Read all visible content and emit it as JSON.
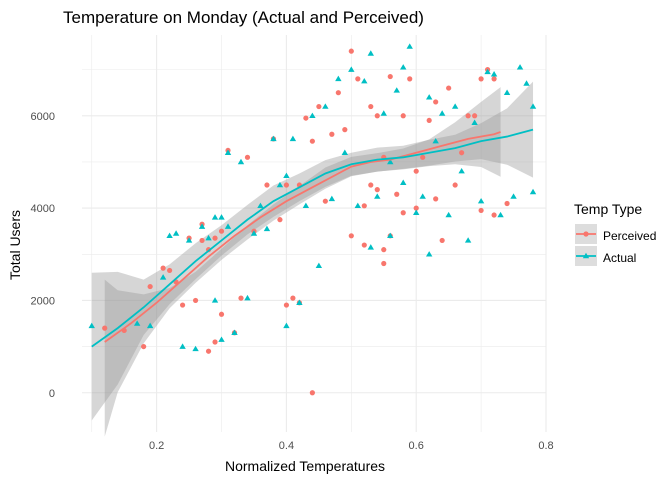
{
  "chart_data": {
    "type": "scatter",
    "title": "Temperature on Monday (Actual and Perceived)",
    "xlabel": "Normalized Temperatures",
    "ylabel": "Total Users",
    "xlim": [
      0.085,
      0.8
    ],
    "ylim": [
      -850,
      7750
    ],
    "x_ticks": [
      0.2,
      0.4,
      0.6,
      0.8
    ],
    "x_tick_labels": [
      "0.2",
      "0.4",
      "0.6",
      "0.8"
    ],
    "y_ticks": [
      0,
      2000,
      4000,
      6000
    ],
    "y_tick_labels": [
      "0",
      "2000",
      "4000",
      "6000"
    ],
    "grid": true,
    "legend": {
      "title": "Temp Type",
      "position": "right"
    },
    "series": [
      {
        "name": "Perceived",
        "color": "#F8766D",
        "marker": "circle",
        "points": [
          [
            0.12,
            1400
          ],
          [
            0.15,
            1350
          ],
          [
            0.18,
            1000
          ],
          [
            0.19,
            2300
          ],
          [
            0.21,
            2700
          ],
          [
            0.22,
            2650
          ],
          [
            0.23,
            2400
          ],
          [
            0.24,
            1900
          ],
          [
            0.25,
            3350
          ],
          [
            0.26,
            2000
          ],
          [
            0.27,
            3650
          ],
          [
            0.27,
            3300
          ],
          [
            0.28,
            900
          ],
          [
            0.28,
            3100
          ],
          [
            0.29,
            3350
          ],
          [
            0.29,
            1100
          ],
          [
            0.3,
            1700
          ],
          [
            0.3,
            3500
          ],
          [
            0.31,
            5250
          ],
          [
            0.32,
            1300
          ],
          [
            0.33,
            2050
          ],
          [
            0.34,
            5100
          ],
          [
            0.35,
            3500
          ],
          [
            0.37,
            4500
          ],
          [
            0.38,
            5500
          ],
          [
            0.39,
            3750
          ],
          [
            0.4,
            4500
          ],
          [
            0.4,
            1900
          ],
          [
            0.41,
            2050
          ],
          [
            0.42,
            1950
          ],
          [
            0.42,
            4500
          ],
          [
            0.43,
            5950
          ],
          [
            0.44,
            0
          ],
          [
            0.44,
            5450
          ],
          [
            0.45,
            6200
          ],
          [
            0.46,
            4150
          ],
          [
            0.47,
            5600
          ],
          [
            0.48,
            6500
          ],
          [
            0.49,
            5700
          ],
          [
            0.5,
            7400
          ],
          [
            0.5,
            3400
          ],
          [
            0.51,
            6800
          ],
          [
            0.52,
            4050
          ],
          [
            0.52,
            3200
          ],
          [
            0.53,
            6200
          ],
          [
            0.53,
            4500
          ],
          [
            0.54,
            4400
          ],
          [
            0.54,
            6000
          ],
          [
            0.55,
            3100
          ],
          [
            0.55,
            2800
          ],
          [
            0.55,
            5100
          ],
          [
            0.56,
            6850
          ],
          [
            0.56,
            3400
          ],
          [
            0.57,
            4300
          ],
          [
            0.58,
            3900
          ],
          [
            0.58,
            6000
          ],
          [
            0.59,
            6800
          ],
          [
            0.6,
            4800
          ],
          [
            0.6,
            4000
          ],
          [
            0.61,
            5100
          ],
          [
            0.62,
            5900
          ],
          [
            0.63,
            6300
          ],
          [
            0.63,
            4200
          ],
          [
            0.64,
            3300
          ],
          [
            0.65,
            6600
          ],
          [
            0.66,
            4500
          ],
          [
            0.67,
            5200
          ],
          [
            0.68,
            6000
          ],
          [
            0.69,
            6000
          ],
          [
            0.7,
            6800
          ],
          [
            0.7,
            3950
          ],
          [
            0.71,
            7000
          ],
          [
            0.72,
            6800
          ],
          [
            0.72,
            3850
          ],
          [
            0.74,
            4100
          ]
        ],
        "smooth": [
          [
            0.12,
            1100
          ],
          [
            0.16,
            1500
          ],
          [
            0.2,
            1950
          ],
          [
            0.24,
            2450
          ],
          [
            0.28,
            2950
          ],
          [
            0.32,
            3400
          ],
          [
            0.36,
            3800
          ],
          [
            0.4,
            4150
          ],
          [
            0.44,
            4450
          ],
          [
            0.48,
            4750
          ],
          [
            0.5,
            4900
          ],
          [
            0.53,
            5000
          ],
          [
            0.56,
            5050
          ],
          [
            0.6,
            5200
          ],
          [
            0.64,
            5350
          ],
          [
            0.68,
            5500
          ],
          [
            0.72,
            5600
          ],
          [
            0.73,
            5650
          ]
        ],
        "band_lower": [
          [
            0.12,
            -950
          ],
          [
            0.14,
            10
          ],
          [
            0.18,
            1070
          ],
          [
            0.22,
            1830
          ],
          [
            0.26,
            2380
          ],
          [
            0.3,
            2880
          ],
          [
            0.34,
            3320
          ],
          [
            0.38,
            3730
          ],
          [
            0.42,
            4080
          ],
          [
            0.46,
            4420
          ],
          [
            0.5,
            4690
          ],
          [
            0.54,
            4790
          ],
          [
            0.58,
            4840
          ],
          [
            0.62,
            4910
          ],
          [
            0.66,
            4950
          ],
          [
            0.7,
            4890
          ],
          [
            0.73,
            4680
          ]
        ],
        "band_upper": [
          [
            0.12,
            2450
          ],
          [
            0.14,
            2220
          ],
          [
            0.18,
            2130
          ],
          [
            0.22,
            2270
          ],
          [
            0.26,
            2620
          ],
          [
            0.3,
            3120
          ],
          [
            0.34,
            3630
          ],
          [
            0.38,
            4080
          ],
          [
            0.42,
            4480
          ],
          [
            0.46,
            4880
          ],
          [
            0.5,
            5110
          ],
          [
            0.54,
            5190
          ],
          [
            0.58,
            5290
          ],
          [
            0.62,
            5490
          ],
          [
            0.66,
            5860
          ],
          [
            0.7,
            6300
          ],
          [
            0.73,
            6620
          ]
        ]
      },
      {
        "name": "Actual",
        "color": "#00BFC4",
        "marker": "triangle",
        "points": [
          [
            0.1,
            1450
          ],
          [
            0.17,
            1500
          ],
          [
            0.19,
            1450
          ],
          [
            0.21,
            2500
          ],
          [
            0.22,
            3400
          ],
          [
            0.23,
            3450
          ],
          [
            0.24,
            1000
          ],
          [
            0.25,
            3300
          ],
          [
            0.26,
            950
          ],
          [
            0.27,
            3600
          ],
          [
            0.28,
            3350
          ],
          [
            0.29,
            3800
          ],
          [
            0.29,
            2000
          ],
          [
            0.3,
            3800
          ],
          [
            0.3,
            1150
          ],
          [
            0.31,
            3600
          ],
          [
            0.31,
            5200
          ],
          [
            0.32,
            1300
          ],
          [
            0.33,
            5000
          ],
          [
            0.34,
            2050
          ],
          [
            0.35,
            3450
          ],
          [
            0.36,
            4050
          ],
          [
            0.37,
            3550
          ],
          [
            0.38,
            5500
          ],
          [
            0.39,
            4500
          ],
          [
            0.4,
            4700
          ],
          [
            0.4,
            1450
          ],
          [
            0.41,
            5500
          ],
          [
            0.42,
            1950
          ],
          [
            0.43,
            4050
          ],
          [
            0.44,
            6000
          ],
          [
            0.45,
            2750
          ],
          [
            0.46,
            6200
          ],
          [
            0.47,
            4200
          ],
          [
            0.48,
            6800
          ],
          [
            0.49,
            5200
          ],
          [
            0.5,
            7000
          ],
          [
            0.51,
            4050
          ],
          [
            0.52,
            6750
          ],
          [
            0.53,
            7350
          ],
          [
            0.53,
            3150
          ],
          [
            0.54,
            4250
          ],
          [
            0.55,
            6050
          ],
          [
            0.56,
            3400
          ],
          [
            0.56,
            5000
          ],
          [
            0.57,
            6550
          ],
          [
            0.58,
            7050
          ],
          [
            0.58,
            4550
          ],
          [
            0.59,
            7500
          ],
          [
            0.6,
            3900
          ],
          [
            0.61,
            4250
          ],
          [
            0.62,
            6400
          ],
          [
            0.62,
            3000
          ],
          [
            0.63,
            5450
          ],
          [
            0.64,
            6050
          ],
          [
            0.65,
            3850
          ],
          [
            0.66,
            6200
          ],
          [
            0.67,
            4800
          ],
          [
            0.68,
            3300
          ],
          [
            0.69,
            5850
          ],
          [
            0.7,
            4150
          ],
          [
            0.71,
            6950
          ],
          [
            0.72,
            6900
          ],
          [
            0.73,
            3850
          ],
          [
            0.74,
            6500
          ],
          [
            0.75,
            4250
          ],
          [
            0.76,
            7050
          ],
          [
            0.77,
            6700
          ],
          [
            0.78,
            4350
          ],
          [
            0.78,
            6200
          ]
        ],
        "smooth": [
          [
            0.1,
            1000
          ],
          [
            0.14,
            1400
          ],
          [
            0.18,
            1850
          ],
          [
            0.22,
            2350
          ],
          [
            0.26,
            2850
          ],
          [
            0.3,
            3300
          ],
          [
            0.34,
            3750
          ],
          [
            0.38,
            4150
          ],
          [
            0.42,
            4450
          ],
          [
            0.46,
            4750
          ],
          [
            0.5,
            4950
          ],
          [
            0.54,
            5050
          ],
          [
            0.58,
            5100
          ],
          [
            0.62,
            5200
          ],
          [
            0.66,
            5300
          ],
          [
            0.7,
            5450
          ],
          [
            0.74,
            5550
          ],
          [
            0.78,
            5700
          ]
        ],
        "band_lower": [
          [
            0.1,
            -600
          ],
          [
            0.14,
            180
          ],
          [
            0.18,
            1250
          ],
          [
            0.22,
            1920
          ],
          [
            0.26,
            2460
          ],
          [
            0.3,
            2970
          ],
          [
            0.34,
            3430
          ],
          [
            0.38,
            3810
          ],
          [
            0.42,
            4150
          ],
          [
            0.46,
            4460
          ],
          [
            0.5,
            4700
          ],
          [
            0.54,
            4790
          ],
          [
            0.58,
            4850
          ],
          [
            0.62,
            4920
          ],
          [
            0.66,
            5010
          ],
          [
            0.7,
            5060
          ],
          [
            0.74,
            4940
          ],
          [
            0.78,
            4660
          ]
        ],
        "band_upper": [
          [
            0.1,
            2600
          ],
          [
            0.14,
            2620
          ],
          [
            0.18,
            2450
          ],
          [
            0.22,
            2780
          ],
          [
            0.26,
            3240
          ],
          [
            0.3,
            3630
          ],
          [
            0.34,
            4070
          ],
          [
            0.38,
            4490
          ],
          [
            0.42,
            4750
          ],
          [
            0.46,
            5040
          ],
          [
            0.5,
            5200
          ],
          [
            0.54,
            5310
          ],
          [
            0.58,
            5350
          ],
          [
            0.62,
            5480
          ],
          [
            0.66,
            5590
          ],
          [
            0.7,
            5840
          ],
          [
            0.74,
            6160
          ],
          [
            0.78,
            6740
          ]
        ]
      }
    ]
  },
  "colors": {
    "band": "#999999",
    "grid": "#ebebeb",
    "legend_key_bg": "#dddddd"
  }
}
